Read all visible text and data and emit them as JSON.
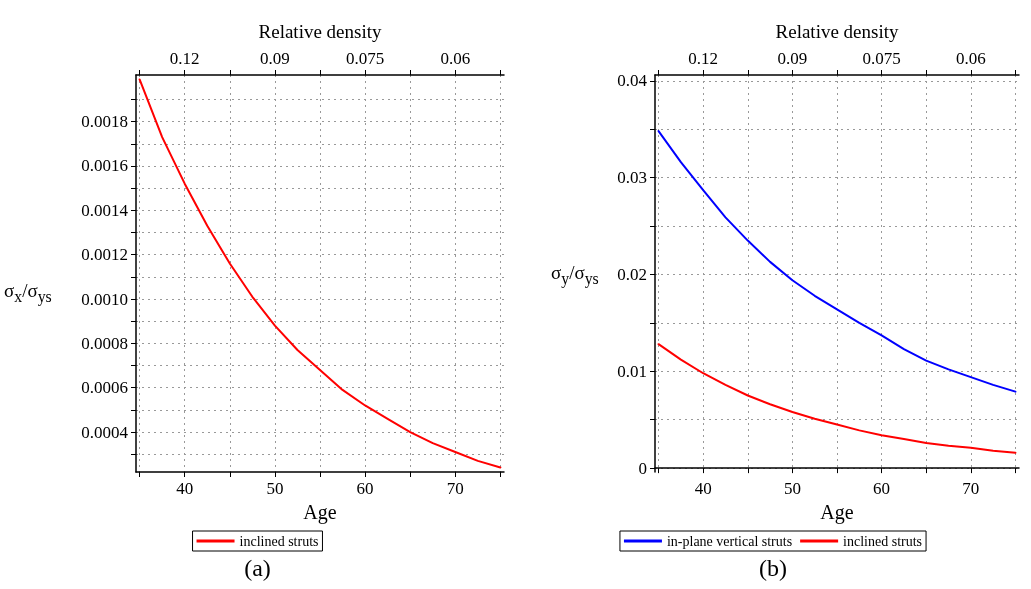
{
  "chart_data": [
    {
      "type": "line",
      "xlabel": "Age",
      "x2label": "Relative density",
      "ylabel": "σ$_{x}$/σ$_{ys}$",
      "annotations": [
        "(a)",
        {
          "text": "0.12",
          "x": 40
        },
        {
          "text": "0.09",
          "x": 50
        },
        {
          "text": "0.075",
          "x": 60
        },
        {
          "text": "0.06",
          "x": 70
        }
      ],
      "grid": true,
      "legend": "bottom",
      "xlim": [
        34.6,
        75.4
      ],
      "ylim": [
        0.00022,
        0.00201
      ],
      "xticks": [
        {
          "value": 35,
          "label": null
        },
        40,
        {
          "value": 45,
          "label": null
        },
        50,
        {
          "value": 55,
          "label": null
        },
        60,
        {
          "value": 65,
          "label": null
        },
        70,
        {
          "value": 75,
          "label": null
        }
      ],
      "yticks": [
        {
          "value": 0.0003,
          "label": null
        },
        0.0004,
        {
          "value": 0.0005,
          "label": null
        },
        0.0006,
        {
          "value": 0.0007,
          "label": null
        },
        0.0008,
        {
          "value": 0.0009,
          "label": null
        },
        {
          "value": 0.001,
          "label": "0.0010"
        },
        {
          "value": 0.0011,
          "label": null
        },
        0.0012,
        {
          "value": 0.0013,
          "label": null
        },
        0.0014,
        {
          "value": 0.0015,
          "label": null
        },
        0.0016,
        {
          "value": 0.0017,
          "label": null
        },
        0.0018,
        {
          "value": 0.0019,
          "label": null
        }
      ],
      "x": [
        35,
        37.5,
        40,
        42.5,
        45,
        47.5,
        50,
        52.5,
        55,
        57.5,
        60,
        62.5,
        65,
        67.5,
        70,
        72.5,
        75
      ],
      "series": [
        {
          "name": "inclined struts",
          "color": "#ff0000",
          "values": [
            0.00199,
            0.00173,
            0.00152,
            0.00133,
            0.00116,
            0.00101,
            0.00088,
            0.00077,
            0.00068,
            0.00059,
            0.00052,
            0.00046,
            0.0004,
            0.00035,
            0.00031,
            0.00027,
            0.00024
          ]
        }
      ]
    },
    {
      "type": "line",
      "xlabel": "Age",
      "x2label": "Relative density",
      "ylabel": "σ$_{y}$/σ$_{ys}$",
      "annotations": [
        "(b)",
        {
          "text": "0.12",
          "x": 40
        },
        {
          "text": "0.09",
          "x": 50
        },
        {
          "text": "0.075",
          "x": 60
        },
        {
          "text": "0.06",
          "x": 70
        }
      ],
      "grid": true,
      "legend": "bottom",
      "xlim": [
        34.6,
        75.4
      ],
      "ylim": [
        -0.0004,
        0.0406
      ],
      "xticks": [
        {
          "value": 35,
          "label": null
        },
        40,
        {
          "value": 45,
          "label": null
        },
        50,
        {
          "value": 55,
          "label": null
        },
        60,
        {
          "value": 65,
          "label": null
        },
        70,
        {
          "value": 75,
          "label": null
        }
      ],
      "yticks": [
        0,
        {
          "value": 0.005,
          "label": null
        },
        0.01,
        {
          "value": 0.015,
          "label": null
        },
        0.02,
        {
          "value": 0.025,
          "label": null
        },
        0.03,
        {
          "value": 0.035,
          "label": null
        },
        0.04
      ],
      "x": [
        35,
        37.5,
        40,
        42.5,
        45,
        47.5,
        50,
        52.5,
        55,
        57.5,
        60,
        62.5,
        65,
        67.5,
        70,
        72.5,
        75
      ],
      "series": [
        {
          "name": "in-plane vertical struts",
          "color": "#0000ff",
          "values": [
            0.0348,
            0.0316,
            0.0287,
            0.0259,
            0.0235,
            0.0213,
            0.0194,
            0.0178,
            0.0164,
            0.015,
            0.0137,
            0.0123,
            0.0111,
            0.0102,
            0.0094,
            0.0086,
            0.0079
          ]
        },
        {
          "name": "inclined struts",
          "color": "#ff0000",
          "values": [
            0.0128,
            0.0112,
            0.0098,
            0.0086,
            0.0075,
            0.0066,
            0.0058,
            0.0051,
            0.0045,
            0.0039,
            0.0034,
            0.003,
            0.0026,
            0.0023,
            0.0021,
            0.0018,
            0.0016
          ]
        }
      ]
    }
  ]
}
